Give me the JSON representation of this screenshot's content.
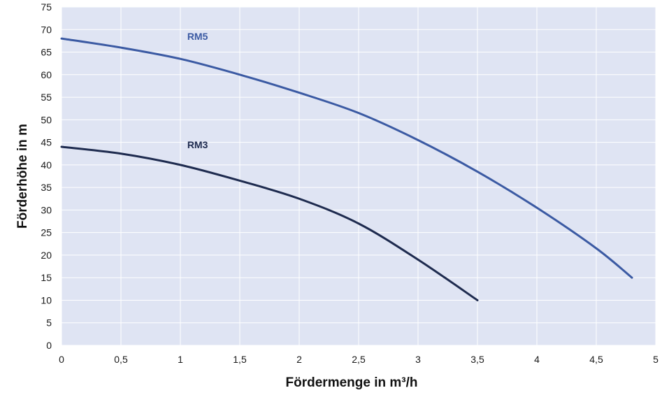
{
  "chart_data": {
    "type": "line",
    "title": "",
    "xlabel": "Fördermenge in m³/h",
    "ylabel": "Förderhöhe in m",
    "xlim": [
      0,
      5
    ],
    "ylim": [
      0,
      75
    ],
    "x_ticks": [
      {
        "value": 0,
        "label": "0"
      },
      {
        "value": 0.5,
        "label": "0,5"
      },
      {
        "value": 1,
        "label": "1"
      },
      {
        "value": 1.5,
        "label": "1,5"
      },
      {
        "value": 2,
        "label": "2"
      },
      {
        "value": 2.5,
        "label": "2,5"
      },
      {
        "value": 3,
        "label": "3"
      },
      {
        "value": 3.5,
        "label": "3,5"
      },
      {
        "value": 4,
        "label": "4"
      },
      {
        "value": 4.5,
        "label": "4,5"
      },
      {
        "value": 5,
        "label": "5"
      }
    ],
    "y_ticks": [
      {
        "value": 0,
        "label": "0"
      },
      {
        "value": 5,
        "label": "5"
      },
      {
        "value": 10,
        "label": "10"
      },
      {
        "value": 15,
        "label": "15"
      },
      {
        "value": 20,
        "label": "20"
      },
      {
        "value": 25,
        "label": "25"
      },
      {
        "value": 30,
        "label": "30"
      },
      {
        "value": 35,
        "label": "35"
      },
      {
        "value": 40,
        "label": "40"
      },
      {
        "value": 45,
        "label": "45"
      },
      {
        "value": 50,
        "label": "50"
      },
      {
        "value": 55,
        "label": "55"
      },
      {
        "value": 60,
        "label": "60"
      },
      {
        "value": 65,
        "label": "65"
      },
      {
        "value": 70,
        "label": "70"
      },
      {
        "value": 75,
        "label": "75"
      }
    ],
    "grid": true,
    "background": "#dfe4f3",
    "series": [
      {
        "name": "RM5",
        "color": "#3b5aa3",
        "label_at": {
          "x": 0.88,
          "y": 68
        },
        "points": [
          {
            "x": 0,
            "y": 68
          },
          {
            "x": 0.5,
            "y": 66
          },
          {
            "x": 1,
            "y": 63.5
          },
          {
            "x": 1.5,
            "y": 60
          },
          {
            "x": 2,
            "y": 56
          },
          {
            "x": 2.5,
            "y": 51.5
          },
          {
            "x": 3,
            "y": 45.5
          },
          {
            "x": 3.5,
            "y": 38.5
          },
          {
            "x": 4,
            "y": 30.5
          },
          {
            "x": 4.5,
            "y": 21.5
          },
          {
            "x": 4.8,
            "y": 15
          }
        ]
      },
      {
        "name": "RM3",
        "color": "#1e2b4f",
        "label_at": {
          "x": 0.88,
          "y": 44
        },
        "points": [
          {
            "x": 0,
            "y": 44
          },
          {
            "x": 0.5,
            "y": 42.5
          },
          {
            "x": 1,
            "y": 40
          },
          {
            "x": 1.5,
            "y": 36.5
          },
          {
            "x": 2,
            "y": 32.5
          },
          {
            "x": 2.5,
            "y": 27
          },
          {
            "x": 3,
            "y": 19
          },
          {
            "x": 3.5,
            "y": 10
          }
        ]
      }
    ]
  }
}
